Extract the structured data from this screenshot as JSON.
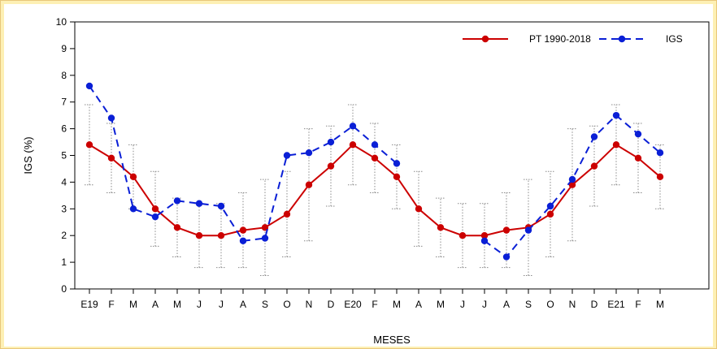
{
  "chart_data": {
    "type": "line",
    "xlabel": "MESES",
    "ylabel": "IGS (%)",
    "ylim": [
      0,
      10
    ],
    "y_ticks": [
      "0",
      "1",
      "2",
      "3",
      "4",
      "5",
      "6",
      "7",
      "8",
      "9",
      "10"
    ],
    "categories": [
      "E19",
      "F",
      "M",
      "A",
      "M",
      "J",
      "J",
      "A",
      "S",
      "O",
      "N",
      "D",
      "E20",
      "F",
      "M",
      "A",
      "M",
      "J",
      "J",
      "A",
      "S",
      "O",
      "N",
      "D",
      "E21",
      "F",
      "M"
    ],
    "grid": false,
    "legend_position": "top-right",
    "series": [
      {
        "name": "PT 1990-2018",
        "color": "#cc0000",
        "line_style": "solid",
        "marker": "circle",
        "values": [
          5.4,
          4.9,
          4.2,
          3.0,
          2.3,
          2.0,
          2.0,
          2.2,
          2.3,
          2.8,
          3.9,
          4.6,
          5.4,
          4.9,
          4.2,
          3.0,
          2.3,
          2.0,
          2.0,
          2.2,
          2.3,
          2.8,
          3.9,
          4.6,
          5.4,
          4.9,
          4.2
        ],
        "error_low": [
          3.9,
          3.6,
          3.0,
          1.6,
          1.2,
          0.8,
          0.8,
          0.8,
          0.5,
          1.2,
          1.8,
          3.1,
          3.9,
          3.6,
          3.0,
          1.6,
          1.2,
          0.8,
          0.8,
          0.8,
          0.5,
          1.2,
          1.8,
          3.1,
          3.9,
          3.6,
          3.0
        ],
        "error_high": [
          6.9,
          6.2,
          5.4,
          4.4,
          3.4,
          3.2,
          3.2,
          3.6,
          4.1,
          4.4,
          6.0,
          6.1,
          6.9,
          6.2,
          5.4,
          4.4,
          3.4,
          3.2,
          3.2,
          3.6,
          4.1,
          4.4,
          6.0,
          6.1,
          6.9,
          6.2,
          5.4
        ]
      },
      {
        "name": "IGS",
        "color": "#0a1fd6",
        "line_style": "dashed",
        "marker": "circle",
        "values": [
          7.6,
          6.4,
          3.0,
          2.7,
          3.3,
          3.2,
          3.1,
          1.8,
          1.9,
          5.0,
          5.1,
          5.5,
          6.1,
          5.4,
          4.7,
          null,
          null,
          null,
          1.8,
          1.2,
          2.2,
          3.1,
          4.1,
          5.7,
          6.5,
          5.8,
          5.1
        ]
      }
    ]
  }
}
